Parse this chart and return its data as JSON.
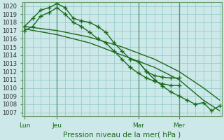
{
  "background_color": "#cce8e8",
  "grid_color": "#99cccc",
  "line_color": "#1a6b1a",
  "title": "Pression niveau de la mer( hPa )",
  "ylim": [
    1006.5,
    1020.5
  ],
  "yticks": [
    1007,
    1008,
    1009,
    1010,
    1011,
    1012,
    1013,
    1014,
    1015,
    1016,
    1017,
    1018,
    1019,
    1020
  ],
  "xtick_labels": [
    "Lun",
    "Jeu",
    "Mar",
    "Mer"
  ],
  "xtick_positions": [
    0,
    4,
    14,
    19
  ],
  "xlim": [
    -0.3,
    24.3
  ],
  "series1_x": [
    0,
    1,
    2,
    3,
    4,
    5,
    6,
    7,
    8,
    9,
    10,
    11,
    12,
    13,
    14,
    15,
    16,
    17,
    18,
    19
  ],
  "series1_y": [
    1017.5,
    1018.5,
    1019.5,
    1019.8,
    1020.3,
    1019.8,
    1018.5,
    1018.2,
    1018.0,
    1017.5,
    1016.8,
    1015.5,
    1014.5,
    1013.5,
    1013.2,
    1012.0,
    1011.5,
    1011.3,
    1011.2,
    1011.2
  ],
  "series2_x": [
    0,
    1,
    2,
    3,
    4,
    5,
    6,
    7,
    8,
    9,
    10,
    11,
    12,
    13,
    14,
    15,
    16,
    17,
    18,
    19
  ],
  "series2_y": [
    1017.0,
    1017.5,
    1018.8,
    1019.2,
    1019.8,
    1019.0,
    1018.0,
    1017.5,
    1016.8,
    1016.0,
    1015.5,
    1014.5,
    1013.5,
    1012.5,
    1011.8,
    1011.2,
    1010.8,
    1010.5,
    1010.3,
    1010.3
  ],
  "series3_x": [
    0,
    4,
    8,
    12,
    16,
    19,
    22,
    24
  ],
  "series3_y": [
    1017.5,
    1017.0,
    1016.2,
    1015.0,
    1013.5,
    1012.0,
    1010.0,
    1008.5
  ],
  "series4_x": [
    0,
    4,
    8,
    12,
    16,
    19,
    22,
    24
  ],
  "series4_y": [
    1017.2,
    1016.5,
    1015.5,
    1014.0,
    1012.5,
    1011.0,
    1008.5,
    1007.2
  ],
  "series5_x": [
    14,
    15,
    16,
    17,
    18,
    19,
    20,
    21,
    22,
    23,
    24
  ],
  "series5_y": [
    1013.2,
    1012.0,
    1011.0,
    1010.2,
    1009.5,
    1009.0,
    1008.5,
    1008.0,
    1008.2,
    1007.2,
    1007.8
  ]
}
